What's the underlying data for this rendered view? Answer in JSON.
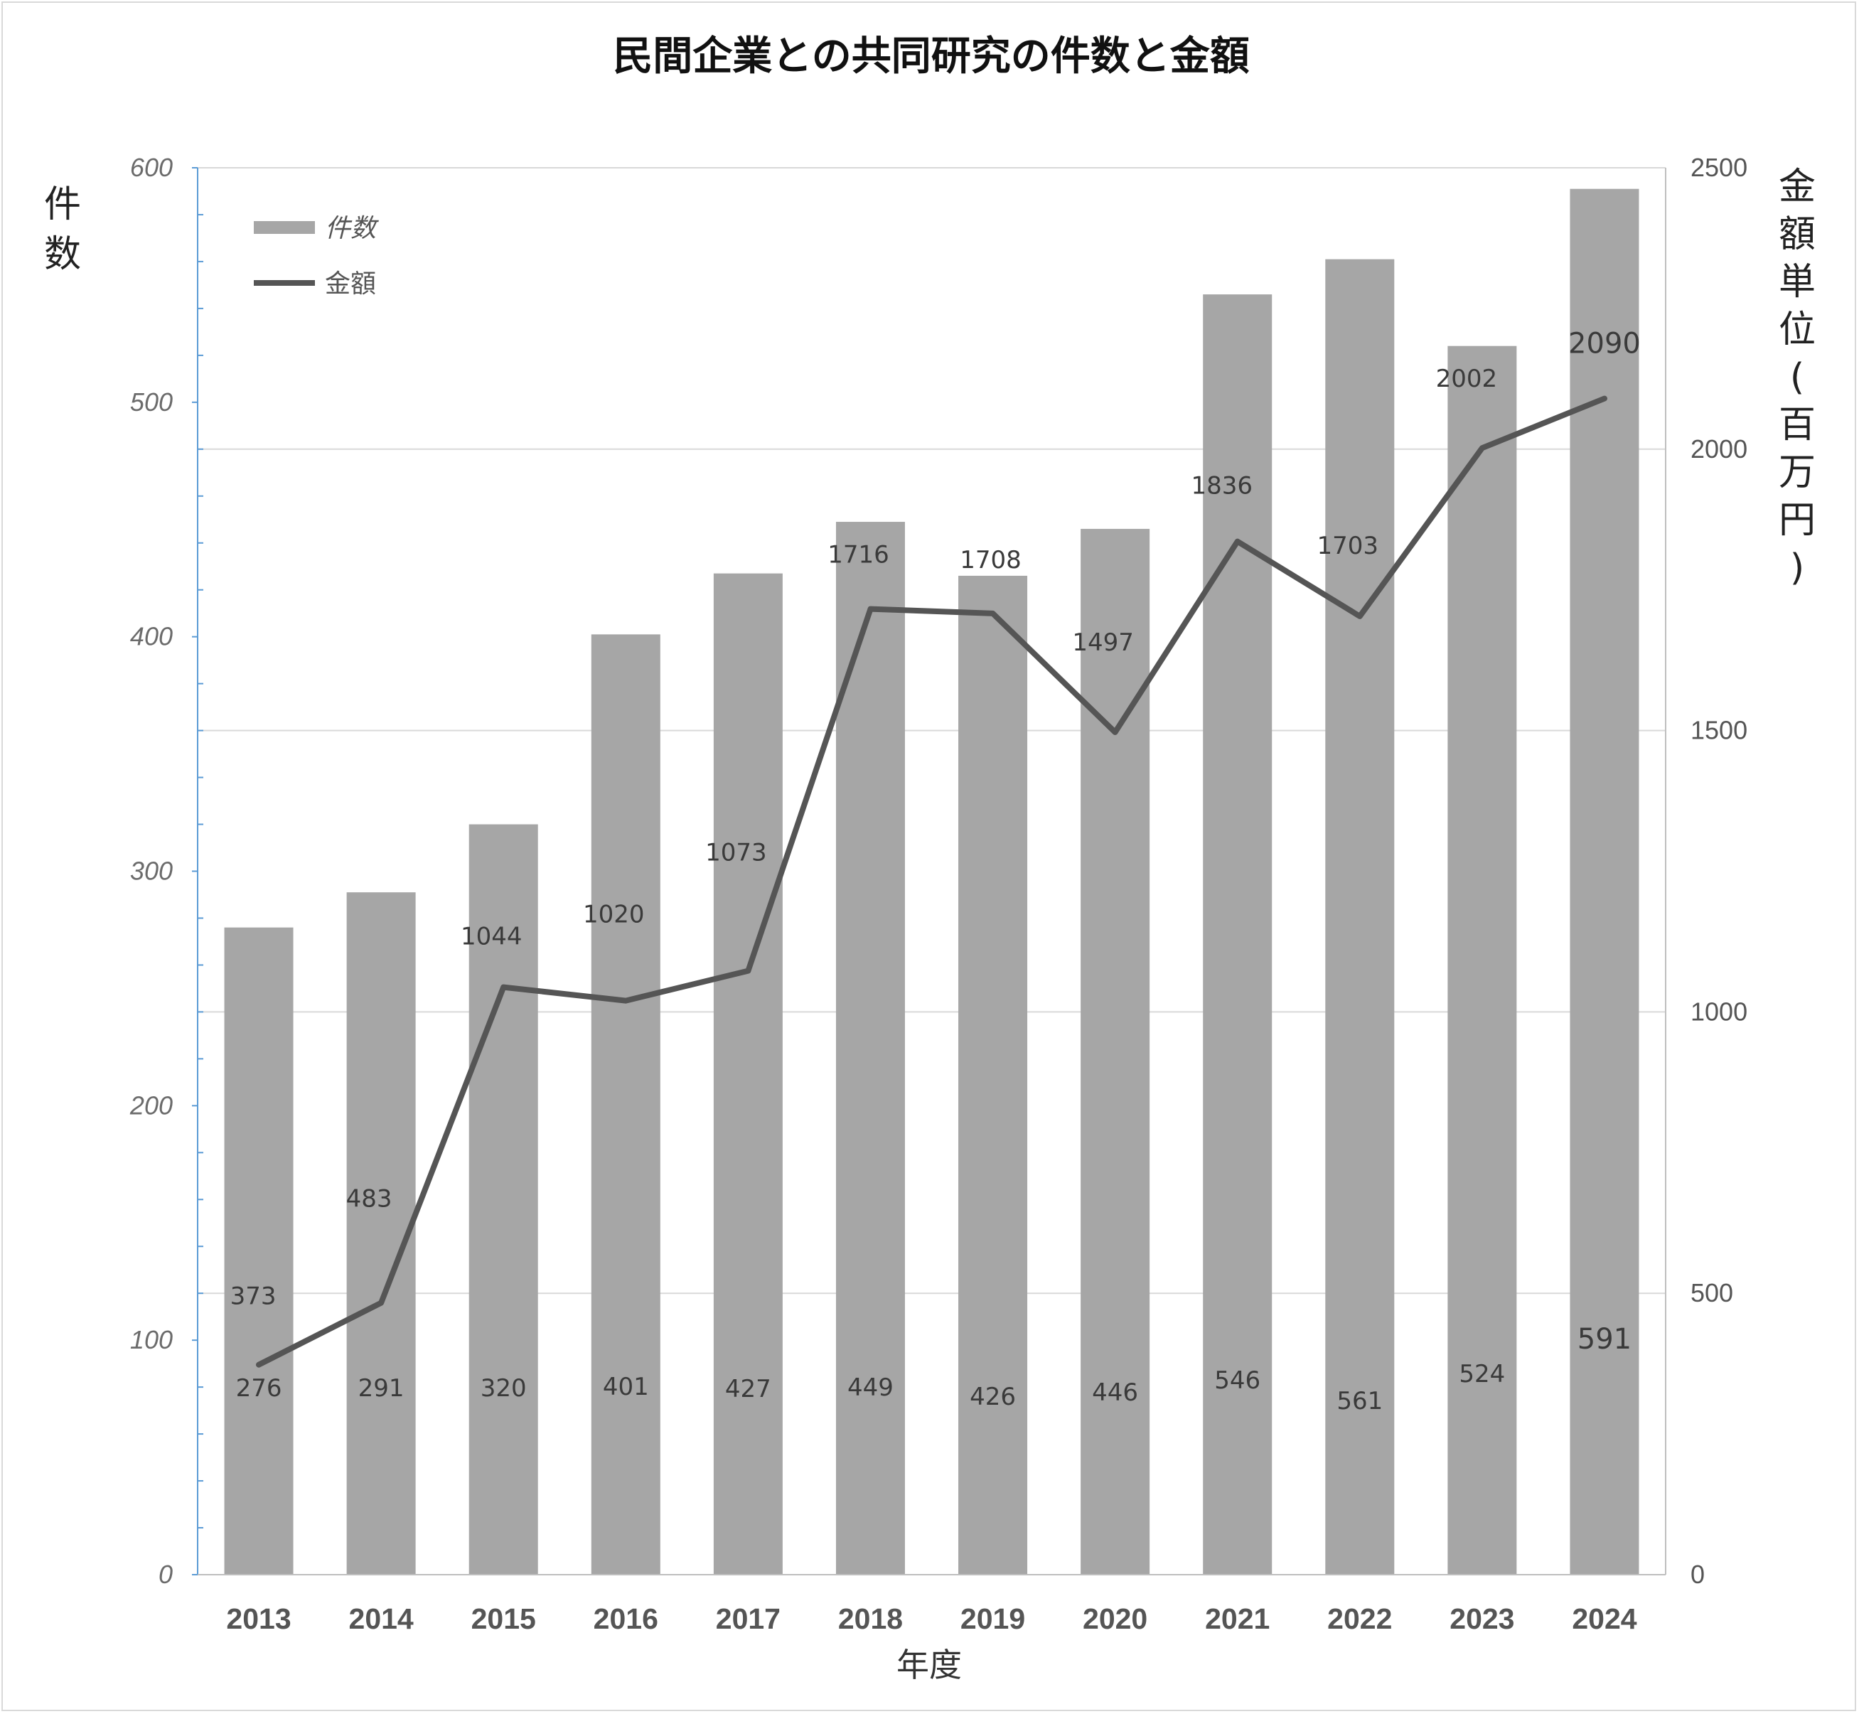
{
  "chart_data": {
    "type": "bar+line",
    "title": "民間企業との共同研究の件数と金額",
    "xlabel": "年度",
    "ylabel_left": "件数",
    "ylabel_right": "金額単位(百万円)",
    "categories": [
      "2013",
      "2014",
      "2015",
      "2016",
      "2017",
      "2018",
      "2019",
      "2020",
      "2021",
      "2022",
      "2023",
      "2024"
    ],
    "series": [
      {
        "name": "件数",
        "type": "bar",
        "axis": "left",
        "values": [
          276,
          291,
          320,
          401,
          427,
          449,
          426,
          446,
          546,
          561,
          524,
          591
        ],
        "color": "#a6a6a6"
      },
      {
        "name": "金額",
        "type": "line",
        "axis": "right",
        "values": [
          373,
          483,
          1044,
          1020,
          1073,
          1716,
          1708,
          1497,
          1836,
          1703,
          2002,
          2090
        ],
        "color": "#555555"
      }
    ],
    "ylim_left": [
      0,
      600
    ],
    "yticks_left": [
      0,
      100,
      200,
      300,
      400,
      500,
      600
    ],
    "ylim_right": [
      0,
      2500
    ],
    "yticks_right": [
      0,
      500,
      1000,
      1500,
      2000,
      2500
    ],
    "grid": true,
    "legend_position": "top-left"
  },
  "colors": {
    "bar": "#a6a6a6",
    "line": "#555555",
    "grid": "#d9d9d9",
    "left_axis": "#5b9bd5",
    "right_axis": "#bfbfbf"
  }
}
